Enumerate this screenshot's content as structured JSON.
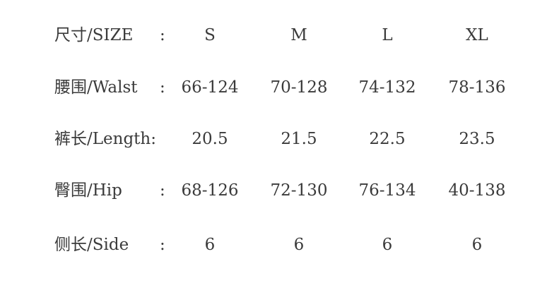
{
  "rows": [
    {
      "label": "尺寸/SIZE",
      "colon": ":",
      "values": [
        "S",
        "M",
        "L",
        "XL"
      ]
    },
    {
      "label": "腰围/Walst",
      "colon": ":",
      "values": [
        "66-124",
        "70-128",
        "74-132",
        "78-136"
      ]
    },
    {
      "label": "裤长/Length:",
      "colon": "",
      "values": [
        "20.5",
        "21.5",
        "22.5",
        "23.5"
      ]
    },
    {
      "label": "臀围/Hip",
      "colon": ":",
      "values": [
        "68-126",
        "72-130",
        "76-134",
        "40-138"
      ]
    },
    {
      "label": "侧长/Side",
      "colon": ":",
      "values": [
        "6",
        "6",
        "6",
        "6"
      ]
    }
  ]
}
